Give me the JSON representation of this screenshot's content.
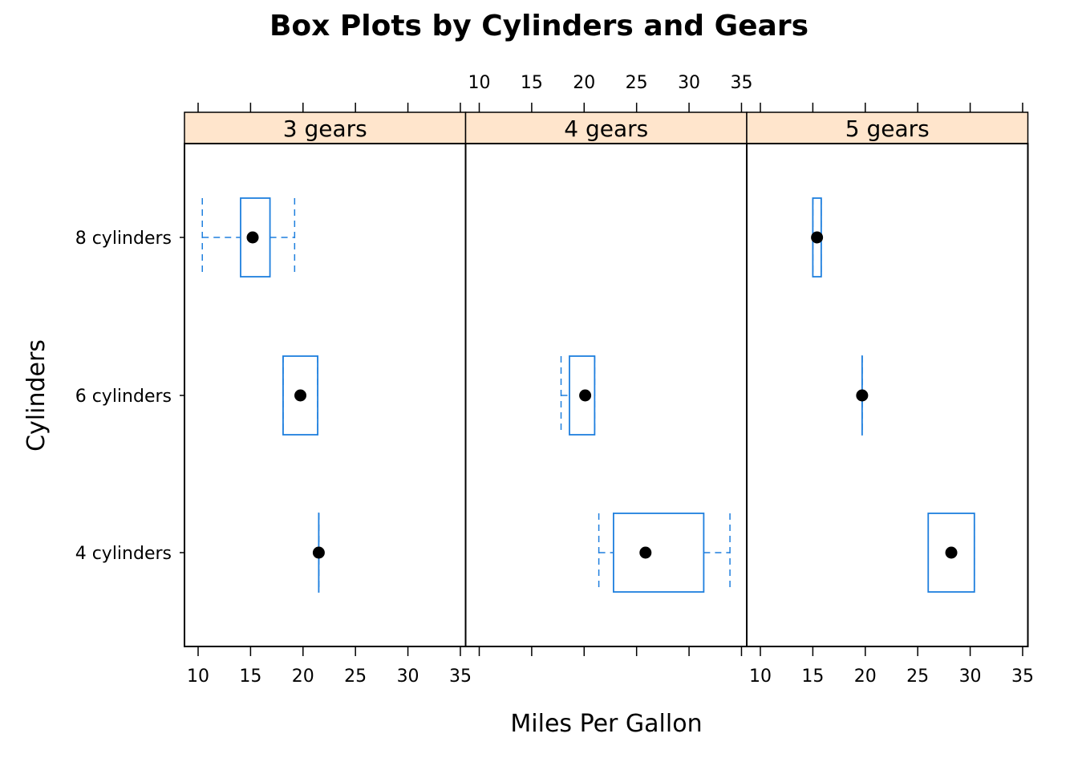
{
  "chart_data": {
    "type": "boxplot",
    "title": "Box Plots by Cylinders and Gears",
    "xlabel": "Miles Per Gallon",
    "ylabel": "Cylinders",
    "xlim": [
      8.7,
      35.5
    ],
    "x_ticks": [
      10,
      15,
      20,
      25,
      30,
      35
    ],
    "categories": [
      "4 cylinders",
      "6 cylinders",
      "8 cylinders"
    ],
    "box_color": "#1f7fde",
    "median_color": "#000000",
    "strip_color": "#ffe5cc",
    "panels": [
      {
        "label": "3 gears",
        "boxes": [
          {
            "category": "4 cylinders",
            "whisker_low": 21.5,
            "q1": 21.5,
            "median": 21.5,
            "q3": 21.5,
            "whisker_high": 21.5
          },
          {
            "category": "6 cylinders",
            "whisker_low": 18.1,
            "q1": 18.1,
            "median": 19.75,
            "q3": 21.4,
            "whisker_high": 21.4
          },
          {
            "category": "8 cylinders",
            "whisker_low": 10.4,
            "q1": 14.05,
            "median": 15.2,
            "q3": 16.85,
            "whisker_high": 19.2
          }
        ]
      },
      {
        "label": "4 gears",
        "boxes": [
          {
            "category": "4 cylinders",
            "whisker_low": 21.4,
            "q1": 22.8,
            "median": 25.85,
            "q3": 31.4,
            "whisker_high": 33.9
          },
          {
            "category": "6 cylinders",
            "whisker_low": 17.8,
            "q1": 18.6,
            "median": 20.1,
            "q3": 21.0,
            "whisker_high": 21.0
          },
          {
            "category": "8 cylinders",
            "whisker_low": null,
            "q1": null,
            "median": null,
            "q3": null,
            "whisker_high": null
          }
        ]
      },
      {
        "label": "5 gears",
        "boxes": [
          {
            "category": "4 cylinders",
            "whisker_low": 26.0,
            "q1": 26.0,
            "median": 28.2,
            "q3": 30.4,
            "whisker_high": 30.4
          },
          {
            "category": "6 cylinders",
            "whisker_low": 19.7,
            "q1": 19.7,
            "median": 19.7,
            "q3": 19.7,
            "whisker_high": 19.7
          },
          {
            "category": "8 cylinders",
            "whisker_low": 15.0,
            "q1": 15.0,
            "median": 15.4,
            "q3": 15.8,
            "whisker_high": 15.8
          }
        ]
      }
    ],
    "top_axis_panel": 1,
    "bottom_axis_panels": [
      0,
      2
    ],
    "grid": false,
    "legend": "none"
  }
}
